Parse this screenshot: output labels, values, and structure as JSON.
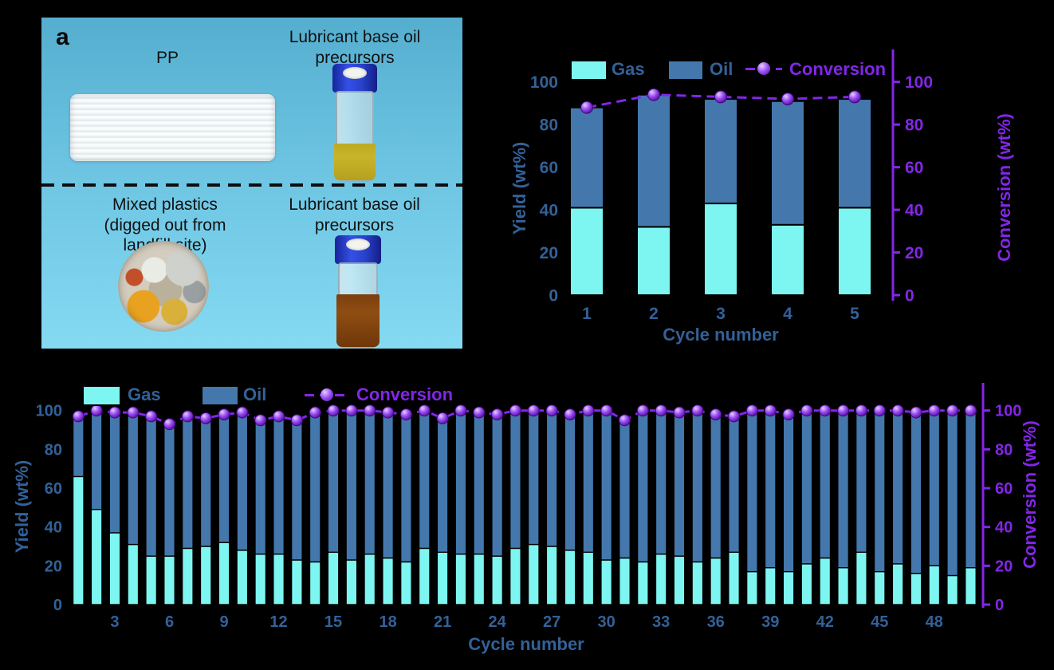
{
  "panel_a": {
    "label": "a",
    "pp_label": "PP",
    "lubricant_top": "Lubricant base oil\nprecursors",
    "lubricant_bottom": "Lubricant base oil\nprecursors",
    "mixed_plastics": "Mixed plastics\n(digged out from\nlandfill site)"
  },
  "colors": {
    "gas": "#7df6f1",
    "oil": "#4478ad",
    "purple": "#8326e8",
    "axis_text": "#336198",
    "panel_top": "#55aecf",
    "panel_bottom": "#85daf2",
    "background": "#000000",
    "vial_cap_blue": "#2941cc",
    "liquid_yellow": "#c9b52b",
    "liquid_brown": "#8f4d12"
  },
  "chart_data": [
    {
      "type": "bar",
      "stacked": true,
      "categories": [
        1,
        2,
        3,
        4,
        5
      ],
      "series": [
        {
          "name": "Gas",
          "values": [
            41,
            32,
            43,
            33,
            41
          ]
        },
        {
          "name": "Oil",
          "values": [
            47,
            62,
            49,
            58,
            51
          ]
        },
        {
          "name": "Conversion",
          "type": "line",
          "values": [
            88,
            94,
            93,
            92,
            93
          ]
        }
      ],
      "xlabel": "Cycle number",
      "ylabel_left": "Yield (wt%)",
      "ylabel_right": "Conversion (wt%)",
      "ylim": [
        0,
        100
      ],
      "yticks": [
        0,
        20,
        40,
        60,
        80,
        100
      ],
      "xticks": [
        1,
        2,
        3,
        4,
        5
      ],
      "legend_position": "top",
      "grid": false
    },
    {
      "type": "bar",
      "stacked": true,
      "n_cycles": 50,
      "series": [
        {
          "name": "Gas",
          "values": [
            66,
            49,
            37,
            31,
            25,
            25,
            29,
            30,
            32,
            28,
            26,
            26,
            23,
            22,
            27,
            23,
            26,
            24,
            22,
            29,
            27,
            26,
            26,
            25,
            29,
            31,
            30,
            28,
            27,
            23,
            24,
            22,
            26,
            25,
            22,
            24,
            27,
            17,
            19,
            17,
            21,
            24,
            19,
            27,
            17,
            21,
            16,
            20,
            15,
            19
          ]
        },
        {
          "name": "Oil",
          "values": [
            31,
            51,
            62,
            68,
            72,
            68,
            68,
            66,
            66,
            71,
            69,
            71,
            72,
            77,
            73,
            77,
            74,
            75,
            76,
            71,
            69,
            74,
            73,
            73,
            71,
            69,
            70,
            70,
            73,
            77,
            71,
            78,
            74,
            74,
            78,
            74,
            70,
            83,
            81,
            81,
            79,
            76,
            81,
            73,
            83,
            79,
            83,
            80,
            85,
            81
          ]
        },
        {
          "name": "Conversion",
          "type": "line",
          "values": [
            97,
            100,
            99,
            99,
            97,
            93,
            97,
            96,
            98,
            99,
            95,
            97,
            95,
            99,
            100,
            100,
            100,
            99,
            98,
            100,
            96,
            100,
            99,
            98,
            100,
            100,
            100,
            98,
            100,
            100,
            95,
            100,
            100,
            99,
            100,
            98,
            97,
            100,
            100,
            98,
            100,
            100,
            100,
            100,
            100,
            100,
            99,
            100,
            100,
            100
          ]
        }
      ],
      "xlabel": "Cycle number",
      "ylabel_left": "Yield (wt%)",
      "ylabel_right": "Conversion (wt%)",
      "ylim": [
        0,
        100
      ],
      "yticks": [
        0,
        20,
        40,
        60,
        80,
        100
      ],
      "xticks": [
        3,
        6,
        9,
        12,
        15,
        18,
        21,
        24,
        27,
        30,
        33,
        36,
        39,
        42,
        45,
        48
      ],
      "legend_position": "top",
      "grid": false
    }
  ]
}
